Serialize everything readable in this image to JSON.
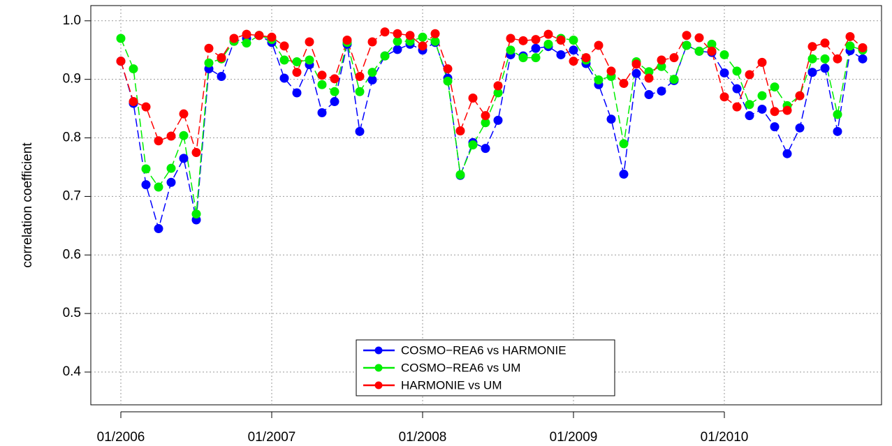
{
  "chart_data": {
    "type": "line",
    "y_label": "correlation coefficient",
    "categories": [
      "01/2006",
      null,
      null,
      null,
      null,
      null,
      null,
      null,
      null,
      null,
      null,
      null,
      "01/2007",
      null,
      null,
      null,
      null,
      null,
      null,
      null,
      null,
      null,
      null,
      null,
      "01/2008",
      null,
      null,
      null,
      null,
      null,
      null,
      null,
      null,
      null,
      null,
      null,
      "01/2009",
      null,
      null,
      null,
      null,
      null,
      null,
      null,
      null,
      null,
      null,
      null,
      "01/2010",
      null,
      null,
      null,
      null,
      null,
      null,
      null,
      null,
      null,
      null,
      null
    ],
    "ylim": [
      0.344,
      1.026
    ],
    "yticks": [
      0.4,
      0.5,
      0.6,
      0.7,
      0.8,
      0.9,
      {
        "value": 1.0,
        "label": "1.0"
      }
    ],
    "grid": true,
    "legend": "bottom",
    "series": [
      {
        "name": "COSMO−REA6 vs HARMONIE",
        "color": "#0000ff",
        "values": [
          0.931,
          0.859,
          0.72,
          0.645,
          0.724,
          0.765,
          0.66,
          0.918,
          0.905,
          0.965,
          0.97,
          0.975,
          0.963,
          0.902,
          0.877,
          0.925,
          0.843,
          0.862,
          0.96,
          0.811,
          0.899,
          0.94,
          0.951,
          0.96,
          0.95,
          0.963,
          0.902,
          0.736,
          0.792,
          0.782,
          0.83,
          0.942,
          0.94,
          0.953,
          0.956,
          0.942,
          0.95,
          0.927,
          0.891,
          0.832,
          0.738,
          0.91,
          0.874,
          0.88,
          0.898,
          0.958,
          0.948,
          0.946,
          0.911,
          0.884,
          0.838,
          0.849,
          0.819,
          0.773,
          0.817,
          0.912,
          0.919,
          0.811,
          0.949,
          0.935
        ]
      },
      {
        "name": "COSMO−REA6 vs UM",
        "color": "#00ee00",
        "values": [
          0.97,
          0.918,
          0.747,
          0.716,
          0.748,
          0.804,
          0.67,
          0.928,
          0.935,
          0.965,
          0.962,
          0.975,
          0.968,
          0.933,
          0.93,
          0.933,
          0.891,
          0.879,
          0.963,
          0.879,
          0.912,
          0.94,
          0.965,
          0.965,
          0.972,
          0.965,
          0.897,
          0.737,
          0.788,
          0.826,
          0.877,
          0.95,
          0.937,
          0.937,
          0.96,
          0.97,
          0.967,
          0.933,
          0.899,
          0.905,
          0.79,
          0.93,
          0.913,
          0.922,
          0.9,
          0.958,
          0.948,
          0.96,
          0.942,
          0.914,
          0.857,
          0.872,
          0.887,
          0.855,
          0.872,
          0.935,
          0.935,
          0.84,
          0.957,
          0.95
        ]
      },
      {
        "name": "HARMONIE vs UM",
        "color": "#ff0000",
        "values": [
          0.931,
          0.862,
          0.853,
          0.795,
          0.803,
          0.841,
          0.775,
          0.953,
          0.937,
          0.97,
          0.977,
          0.975,
          0.972,
          0.957,
          0.912,
          0.964,
          0.907,
          0.901,
          0.967,
          0.905,
          0.964,
          0.981,
          0.978,
          0.975,
          0.957,
          0.978,
          0.918,
          0.812,
          0.868,
          0.838,
          0.889,
          0.97,
          0.966,
          0.968,
          0.977,
          0.967,
          0.931,
          0.937,
          0.958,
          0.914,
          0.893,
          0.926,
          0.902,
          0.933,
          0.937,
          0.975,
          0.971,
          0.948,
          0.87,
          0.853,
          0.908,
          0.929,
          0.845,
          0.847,
          0.872,
          0.956,
          0.962,
          0.935,
          0.973,
          0.954
        ]
      }
    ]
  }
}
